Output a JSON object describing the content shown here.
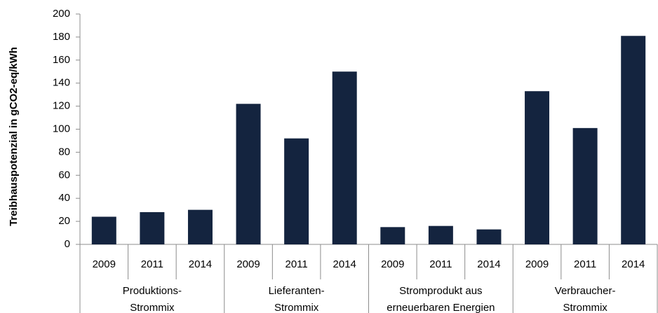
{
  "chart_data": {
    "type": "bar",
    "y_label": "Treibhauspotenzial in  gCO2-eq/kWh",
    "categories": [
      "2009",
      "2011",
      "2014",
      "2009",
      "2011",
      "2014",
      "2009",
      "2011",
      "2014",
      "2009",
      "2011",
      "2014"
    ],
    "groups": [
      {
        "lines": [
          "Produktions-",
          "Strommix"
        ]
      },
      {
        "lines": [
          "Lieferanten-",
          "Strommix"
        ]
      },
      {
        "lines": [
          "Stromprodukt aus",
          "erneuerbaren Energien"
        ]
      },
      {
        "lines": [
          "Verbraucher-",
          "Strommix"
        ]
      }
    ],
    "values": [
      24,
      28,
      30,
      122,
      92,
      150,
      15,
      16,
      13,
      133,
      101,
      181
    ],
    "color": "#14243f",
    "ylim": [
      0,
      200
    ],
    "yticks": [
      0,
      20,
      40,
      60,
      80,
      100,
      120,
      140,
      160,
      180,
      200
    ],
    "grid": false
  }
}
